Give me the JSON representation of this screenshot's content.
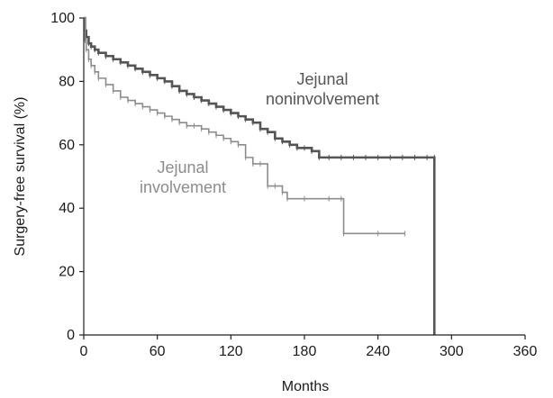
{
  "chart_data": {
    "type": "line",
    "subtype": "kaplan-meier step",
    "xlabel": "Months",
    "ylabel": "Surgery-free survival (%)",
    "xlim": [
      0,
      360
    ],
    "ylim": [
      0,
      100
    ],
    "xticks": [
      0,
      60,
      120,
      180,
      240,
      300,
      360
    ],
    "yticks": [
      0,
      20,
      40,
      60,
      80,
      100
    ],
    "grid": false,
    "legend": "none",
    "series": [
      {
        "name": "Jejunal noninvolvement",
        "label_lines": [
          "Jejunal",
          "noninvolvement"
        ],
        "color": "#555555",
        "x": [
          0,
          1,
          2,
          4,
          6,
          9,
          12,
          18,
          24,
          30,
          36,
          42,
          48,
          54,
          60,
          66,
          72,
          78,
          84,
          90,
          96,
          102,
          108,
          114,
          120,
          126,
          132,
          138,
          144,
          150,
          156,
          162,
          168,
          174,
          180,
          186,
          192,
          200,
          210,
          220,
          230,
          240,
          250,
          260,
          270,
          280,
          286,
          286
        ],
        "y": [
          100,
          96,
          94,
          92,
          91,
          90,
          89,
          88,
          87,
          86,
          85,
          84,
          83,
          82,
          81,
          80,
          78.5,
          77,
          76,
          75,
          74,
          73,
          72,
          71,
          70,
          69,
          68,
          67,
          65,
          64,
          62,
          61,
          60,
          59,
          59,
          58,
          56,
          56,
          56,
          56,
          56,
          56,
          56,
          56,
          56,
          56,
          56,
          0
        ]
      },
      {
        "name": "Jejunal involvement",
        "label_lines": [
          "Jejunal",
          "involvement"
        ],
        "color": "#8c8c8c",
        "x": [
          0,
          1,
          2,
          4,
          6,
          9,
          12,
          18,
          24,
          30,
          36,
          42,
          48,
          54,
          60,
          66,
          72,
          78,
          84,
          90,
          96,
          102,
          108,
          114,
          120,
          126,
          132,
          138,
          144,
          150,
          156,
          162,
          166,
          180,
          200,
          210,
          212,
          240,
          262
        ],
        "y": [
          100,
          93,
          90,
          87,
          85,
          83,
          81,
          79,
          77,
          75,
          74,
          73,
          72,
          71,
          70,
          69,
          68,
          67,
          66,
          66,
          65,
          64,
          63,
          62,
          61,
          60,
          56,
          54,
          54,
          47,
          47,
          45,
          43,
          43,
          43,
          43,
          32,
          32,
          32
        ]
      }
    ]
  }
}
